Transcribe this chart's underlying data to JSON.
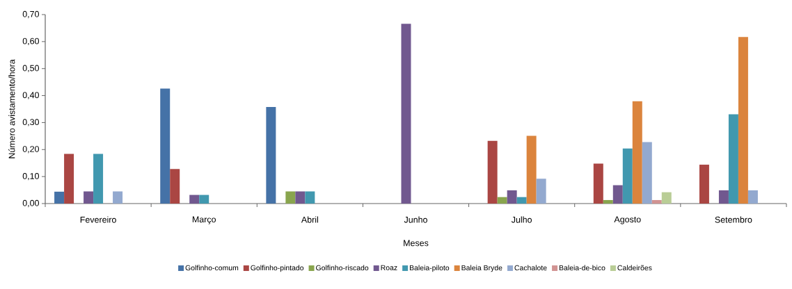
{
  "chart_data": {
    "type": "bar",
    "xlabel": "Meses",
    "ylabel": "Número avistamento/hora",
    "categories": [
      "Fevereiro",
      "Março",
      "Abril",
      "Junho",
      "Julho",
      "Agosto",
      "Setembro"
    ],
    "series": [
      {
        "name": "Golfinho-comum",
        "color": "#4572a7",
        "values": [
          0.044,
          0.426,
          0.358,
          null,
          null,
          null,
          null
        ]
      },
      {
        "name": "Golfinho-pintado",
        "color": "#aa4643",
        "values": [
          0.184,
          0.128,
          null,
          null,
          0.232,
          0.148,
          0.144
        ]
      },
      {
        "name": "Golfinho-riscado",
        "color": "#89a54e",
        "values": [
          null,
          null,
          0.045,
          null,
          0.024,
          0.013,
          null
        ]
      },
      {
        "name": "Roaz",
        "color": "#71588f",
        "values": [
          0.045,
          0.032,
          0.045,
          0.666,
          0.049,
          0.068,
          0.049
        ]
      },
      {
        "name": "Baleia-piloto",
        "color": "#4198af",
        "values": [
          0.184,
          0.032,
          0.045,
          null,
          0.024,
          0.204,
          0.331
        ]
      },
      {
        "name": "Baleia Bryde",
        "color": "#db843d",
        "values": [
          null,
          null,
          null,
          null,
          0.251,
          0.379,
          0.617
        ]
      },
      {
        "name": "Cachalote",
        "color": "#93a9cf",
        "values": [
          0.045,
          null,
          null,
          null,
          0.092,
          0.228,
          0.049
        ]
      },
      {
        "name": "Baleia-de-bico",
        "color": "#d19392",
        "values": [
          null,
          null,
          null,
          null,
          null,
          0.013,
          null
        ]
      },
      {
        "name": "Caldeirões",
        "color": "#b9cd96",
        "values": [
          null,
          null,
          null,
          null,
          null,
          0.042,
          null
        ]
      }
    ],
    "ylim": [
      0,
      0.7
    ],
    "yticks": [
      {
        "value": 0,
        "label": "0,00"
      },
      {
        "value": 0.1,
        "label": "0,10"
      },
      {
        "value": 0.2,
        "label": "0,20"
      },
      {
        "value": 0.3,
        "label": "0,30"
      },
      {
        "value": 0.4,
        "label": "0,40"
      },
      {
        "value": 0.5,
        "label": "0,50"
      },
      {
        "value": 0.6,
        "label": "0,60"
      },
      {
        "value": 0.7,
        "label": "0,70"
      }
    ],
    "legend": "bottom",
    "grid": false
  }
}
